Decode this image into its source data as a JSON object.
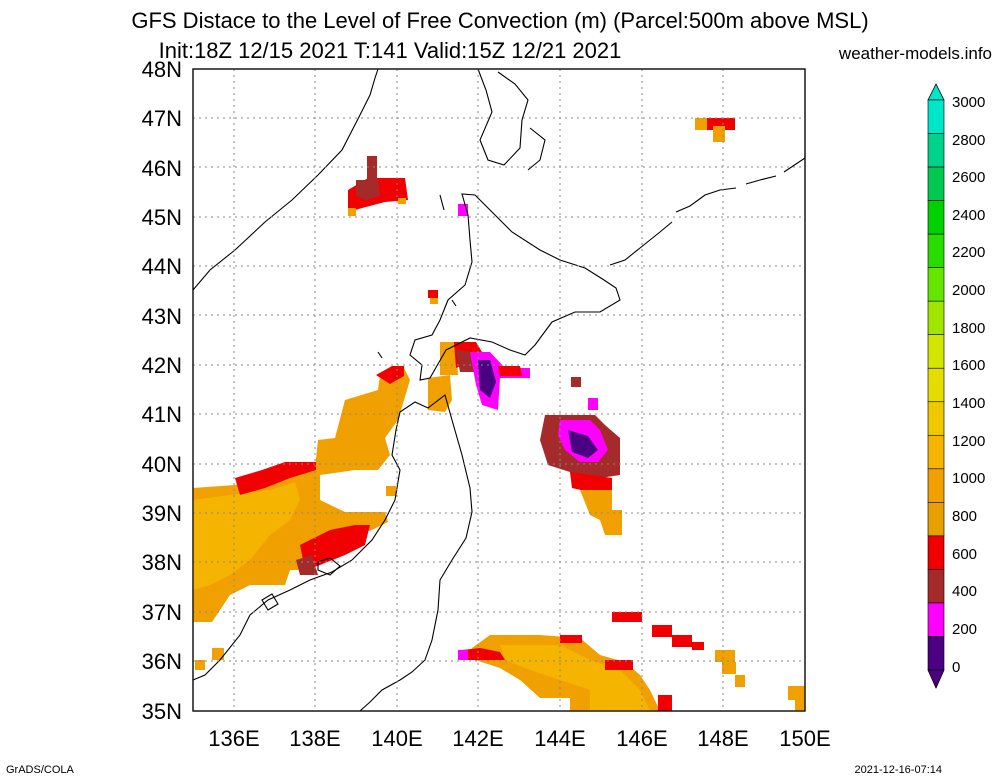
{
  "title": {
    "line1": "GFS Distace to the Level of Free Convection (m) (Parcel:500m above MSL)",
    "line2": "Init:18Z 12/15 2021 T:141 Valid:15Z 12/21 2021"
  },
  "credit": "weather-models.info",
  "footer": {
    "left": "GrADS/COLA",
    "right": "2021-12-16-07:14"
  },
  "axes": {
    "lat_labels": [
      "48N",
      "47N",
      "46N",
      "45N",
      "44N",
      "43N",
      "42N",
      "41N",
      "40N",
      "39N",
      "38N",
      "37N",
      "36N",
      "35N"
    ],
    "lon_labels": [
      "136E",
      "138E",
      "140E",
      "142E",
      "144E",
      "146E",
      "148E",
      "150E"
    ],
    "lat_range": [
      35,
      48
    ],
    "lon_range": [
      135,
      150
    ],
    "grid": "dotted"
  },
  "colorbar": {
    "labels": [
      "3000",
      "2800",
      "2600",
      "2400",
      "2200",
      "2000",
      "1800",
      "1600",
      "1400",
      "1200",
      "1000",
      "800",
      "600",
      "400",
      "200",
      "0"
    ],
    "colors": [
      "#00e6c8",
      "#00d28c",
      "#00c850",
      "#00d200",
      "#28dc00",
      "#64e600",
      "#a0e600",
      "#d2e600",
      "#e6dc00",
      "#f0c800",
      "#f5b400",
      "#f0a000",
      "#e6a000",
      "#f00000",
      "#a52a2a",
      "#ff00ff",
      "#4b0082"
    ]
  },
  "map": {
    "fill_colors": {
      "c0": "#4b0082",
      "c200": "#ff00ff",
      "c400": "#a52a2a",
      "c600": "#f00000",
      "c800": "#f0a000",
      "c1000": "#f5b400"
    }
  }
}
